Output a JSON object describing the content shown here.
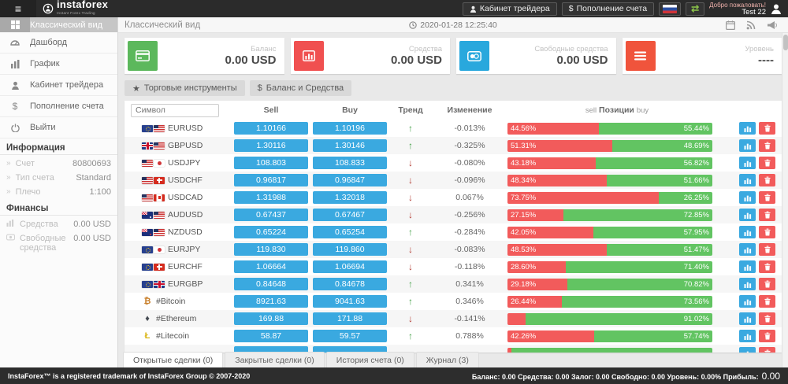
{
  "topbar": {
    "logo": "instaforex",
    "logo_sub": "Instant Forex Trading",
    "trader_cabinet_label": "Кабинет трейдера",
    "deposit_label": "Пополнение счета",
    "welcome_line1": "Добро пожаловать!",
    "welcome_line2": "Test 22"
  },
  "icons": {
    "hamburger": "≡",
    "swap": "⇄",
    "star": "★",
    "dollar": "$",
    "chevron": "»",
    "trend_up": "↑",
    "trend_down": "↓"
  },
  "colors": {
    "accent_blue": "#3aa9e0",
    "sell_red": "#f25b5b",
    "buy_green": "#62c462",
    "card_green": "#5cb85c",
    "card_red": "#f05050",
    "card_blue": "#29a8dd",
    "card_orange": "#f0543c"
  },
  "sidebar": {
    "items": [
      {
        "label": "Классический вид",
        "active": true
      },
      {
        "label": "Дашборд"
      },
      {
        "label": "График"
      },
      {
        "label": "Кабинет трейдера"
      },
      {
        "label": "Пополнение счета"
      },
      {
        "label": "Выйти"
      }
    ],
    "info_title": "Информация",
    "info_rows": [
      {
        "label": "Счет",
        "value": "80800693"
      },
      {
        "label": "Тип счета",
        "value": "Standard"
      },
      {
        "label": "Плечо",
        "value": "1:100"
      }
    ],
    "finance_title": "Финансы",
    "finance_rows": [
      {
        "label": "Средства",
        "value": "0.00 USD"
      },
      {
        "label": "Свободные средства",
        "value": "0.00 USD"
      }
    ]
  },
  "header": {
    "title": "Классический вид",
    "timestamp": "2020-01-28 12:25:40"
  },
  "cards": [
    {
      "label": "Баланс",
      "value": "0.00 USD",
      "color": "#5cb85c"
    },
    {
      "label": "Средства",
      "value": "0.00 USD",
      "color": "#f05050"
    },
    {
      "label": "Свободные средства",
      "value": "0.00 USD",
      "color": "#29a8dd"
    },
    {
      "label": "Уровень",
      "value": "----",
      "color": "#f0543c"
    }
  ],
  "toolbar": {
    "instruments_label": "Торговые инструменты",
    "balance_label": "Баланс и Средства"
  },
  "table": {
    "search_placeholder": "Символ",
    "headers": {
      "sell": "Sell",
      "buy": "Buy",
      "trend": "Тренд",
      "change": "Изменение",
      "positions_prefix": "sell",
      "positions_label": "Позиции",
      "positions_suffix": "buy"
    },
    "rows": [
      {
        "symbol": "EURUSD",
        "flags": [
          "eu",
          "us"
        ],
        "sell": "1.10166",
        "buy": "1.10196",
        "trend": "up",
        "change": "-0.013%",
        "sell_pct": 44.56,
        "sell_label": "44.56%",
        "buy_pct": 55.44,
        "buy_label": "55.44%"
      },
      {
        "symbol": "GBPUSD",
        "flags": [
          "gb",
          "us"
        ],
        "sell": "1.30116",
        "buy": "1.30146",
        "trend": "up",
        "change": "-0.325%",
        "sell_pct": 51.31,
        "sell_label": "51.31%",
        "buy_pct": 48.69,
        "buy_label": "48.69%"
      },
      {
        "symbol": "USDJPY",
        "flags": [
          "us",
          "jp"
        ],
        "sell": "108.803",
        "buy": "108.833",
        "trend": "down",
        "change": "-0.080%",
        "sell_pct": 43.18,
        "sell_label": "43.18%",
        "buy_pct": 56.82,
        "buy_label": "56.82%"
      },
      {
        "symbol": "USDCHF",
        "flags": [
          "us",
          "ch"
        ],
        "sell": "0.96817",
        "buy": "0.96847",
        "trend": "down",
        "change": "-0.096%",
        "sell_pct": 48.34,
        "sell_label": "48.34%",
        "buy_pct": 51.66,
        "buy_label": "51.66%"
      },
      {
        "symbol": "USDCAD",
        "flags": [
          "us",
          "ca"
        ],
        "sell": "1.31988",
        "buy": "1.32018",
        "trend": "down",
        "change": "0.067%",
        "sell_pct": 73.75,
        "sell_label": "73.75%",
        "buy_pct": 26.25,
        "buy_label": "26.25%"
      },
      {
        "symbol": "AUDUSD",
        "flags": [
          "au",
          "us"
        ],
        "sell": "0.67437",
        "buy": "0.67467",
        "trend": "down",
        "change": "-0.256%",
        "sell_pct": 27.15,
        "sell_label": "27.15%",
        "buy_pct": 72.85,
        "buy_label": "72.85%"
      },
      {
        "symbol": "NZDUSD",
        "flags": [
          "nz",
          "us"
        ],
        "sell": "0.65224",
        "buy": "0.65254",
        "trend": "up",
        "change": "-0.284%",
        "sell_pct": 42.05,
        "sell_label": "42.05%",
        "buy_pct": 57.95,
        "buy_label": "57.95%"
      },
      {
        "symbol": "EURJPY",
        "flags": [
          "eu",
          "jp"
        ],
        "sell": "119.830",
        "buy": "119.860",
        "trend": "down",
        "change": "-0.083%",
        "sell_pct": 48.53,
        "sell_label": "48.53%",
        "buy_pct": 51.47,
        "buy_label": "51.47%"
      },
      {
        "symbol": "EURCHF",
        "flags": [
          "eu",
          "ch"
        ],
        "sell": "1.06664",
        "buy": "1.06694",
        "trend": "down",
        "change": "-0.118%",
        "sell_pct": 28.6,
        "sell_label": "28.60%",
        "buy_pct": 71.4,
        "buy_label": "71.40%"
      },
      {
        "symbol": "EURGBP",
        "flags": [
          "eu",
          "gb"
        ],
        "sell": "0.84648",
        "buy": "0.84678",
        "trend": "up",
        "change": "0.341%",
        "sell_pct": 29.18,
        "sell_label": "29.18%",
        "buy_pct": 70.82,
        "buy_label": "70.82%"
      },
      {
        "symbol": "#Bitcoin",
        "crypto": "₿",
        "crypto_color": "#c87f2a",
        "sell": "8921.63",
        "buy": "9041.63",
        "trend": "up",
        "change": "0.346%",
        "sell_pct": 26.44,
        "sell_label": "26.44%",
        "buy_pct": 73.56,
        "buy_label": "73.56%"
      },
      {
        "symbol": "#Ethereum",
        "crypto": "♦",
        "crypto_color": "#454a52",
        "sell": "169.88",
        "buy": "171.88",
        "trend": "down",
        "change": "-0.141%",
        "sell_pct": 8.98,
        "sell_label": "",
        "buy_pct": 91.02,
        "buy_label": "91.02%"
      },
      {
        "symbol": "#Litecoin",
        "crypto": "Ł",
        "crypto_color": "#d9b411",
        "sell": "58.87",
        "buy": "59.57",
        "trend": "up",
        "change": "0.788%",
        "sell_pct": 42.26,
        "sell_label": "42.26%",
        "buy_pct": 57.74,
        "buy_label": "57.74%"
      },
      {
        "symbol": "",
        "sell": "",
        "buy": "",
        "trend": "up",
        "change": "",
        "sell_pct": 2,
        "sell_label": "",
        "buy_pct": 98,
        "buy_label": "",
        "partial": true
      }
    ]
  },
  "bottom_tabs": [
    {
      "label": "Открытые сделки (0)",
      "active": true
    },
    {
      "label": "Закрытые сделки (0)"
    },
    {
      "label": "История счета (0)"
    },
    {
      "label": "Журнал (3)"
    }
  ],
  "footer": {
    "trademark": "InstaForex™ is a registered trademark of InstaForex Group © 2007-2020",
    "stats": "Баланс: 0.00 Средства: 0.00 Залог: 0.00 Свободно: 0.00 Уровень: 0.00% Прибыль:",
    "profit_value": "0.00"
  }
}
